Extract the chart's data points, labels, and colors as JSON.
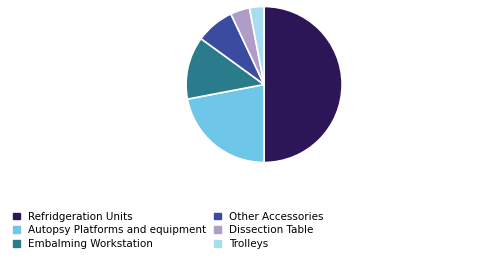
{
  "labels": [
    "Refridgeration Units",
    "Autopsy Platforms and equipment",
    "Embalming Workstation",
    "Other Accessories",
    "Dissection Table",
    "Trolleys"
  ],
  "values": [
    50,
    22,
    13,
    8,
    4,
    3
  ],
  "colors": [
    "#2D1657",
    "#6EC6E8",
    "#2A7B8C",
    "#3B4BA0",
    "#B09CC8",
    "#A8DCF0"
  ],
  "startangle": 90,
  "figsize": [
    5.03,
    2.6
  ],
  "dpi": 100,
  "legend_fontsize": 7.5,
  "background_color": "#ffffff"
}
